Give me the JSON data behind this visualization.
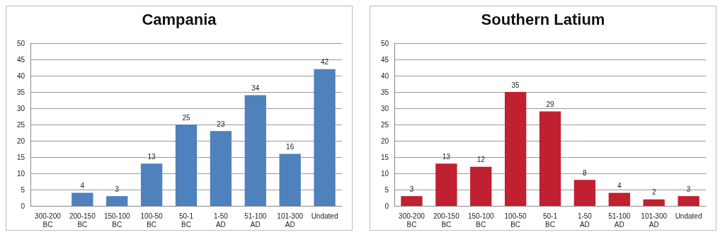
{
  "chart_data": [
    {
      "type": "bar",
      "title": "Campania",
      "categories": [
        "300-200 BC",
        "200-150 BC",
        "150-100 BC",
        "100-50 BC",
        "50-1 BC",
        "1-50 AD",
        "51-100 AD",
        "101-300 AD",
        "Undated"
      ],
      "values": [
        null,
        4,
        3,
        13,
        25,
        23,
        34,
        16,
        42
      ],
      "color": "#4f81bd",
      "ylim": [
        0,
        50
      ],
      "yticks": [
        0,
        5,
        10,
        15,
        20,
        25,
        30,
        35,
        40,
        45,
        50
      ],
      "grid": "y",
      "data_labels": true
    },
    {
      "type": "bar",
      "title": "Southern Latium",
      "categories": [
        "300-200 BC",
        "200-150 BC",
        "150-100 BC",
        "100-50 BC",
        "50-1 BC",
        "1-50 AD",
        "51-100 AD",
        "101-300 AD",
        "Undated"
      ],
      "values": [
        3,
        13,
        12,
        35,
        29,
        8,
        4,
        2,
        3
      ],
      "color": "#c0202f",
      "ylim": [
        0,
        50
      ],
      "yticks": [
        0,
        5,
        10,
        15,
        20,
        25,
        30,
        35,
        40,
        45,
        50
      ],
      "grid": "y",
      "data_labels": true
    }
  ]
}
